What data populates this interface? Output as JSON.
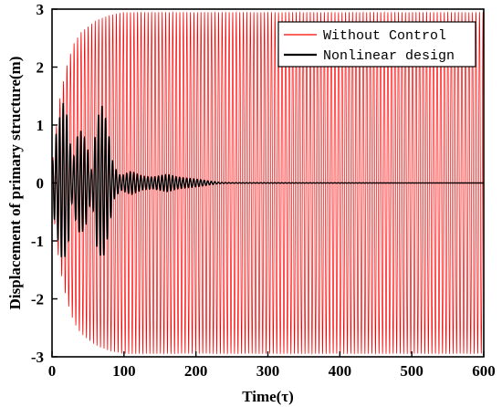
{
  "chart_data": {
    "type": "line",
    "xlabel": "Time(τ)",
    "ylabel": "Displacement of primary structure(m)",
    "xlim": [
      0,
      600
    ],
    "ylim": [
      -3,
      3
    ],
    "xticks": [
      0,
      100,
      200,
      300,
      400,
      500,
      600
    ],
    "yticks": [
      -3,
      -2,
      -1,
      0,
      1,
      2,
      3
    ],
    "grid": false,
    "legend_position": "top-right",
    "series": [
      {
        "name": "Without Control",
        "color": "#ff0000",
        "description_points": {
          "t": [
            0,
            10,
            20,
            30,
            40,
            60,
            80,
            100,
            600
          ],
          "amplitude_envelope": [
            0.3,
            1.4,
            2.0,
            2.4,
            2.6,
            2.8,
            2.9,
            2.95,
            2.95
          ]
        },
        "oscillation_period": 4.9
      },
      {
        "name": "Nonlinear design",
        "color": "#000000",
        "description_points": {
          "t": [
            0,
            5,
            15,
            22,
            28,
            35,
            40,
            48,
            55,
            62,
            70,
            78,
            85,
            95,
            110,
            125,
            140,
            160,
            175,
            190,
            205,
            220,
            235,
            250,
            600
          ],
          "amplitude_envelope": [
            0.3,
            0.8,
            1.4,
            1.1,
            0.3,
            0.8,
            0.9,
            0.7,
            0.2,
            1.1,
            1.35,
            0.9,
            0.3,
            0.12,
            0.2,
            0.12,
            0.1,
            0.15,
            0.1,
            0.08,
            0.06,
            0.03,
            0.01,
            0.005,
            0.0
          ]
        },
        "oscillation_period": 4.9
      }
    ]
  }
}
